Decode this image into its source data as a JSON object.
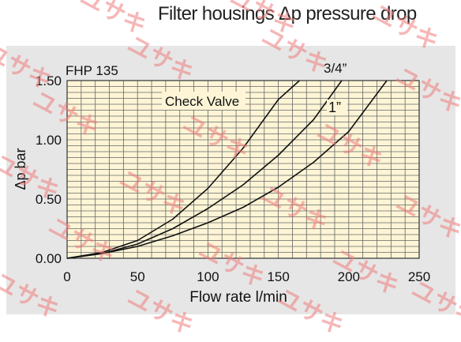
{
  "header": {
    "title": "Filter housings Δp pressure drop"
  },
  "watermark": {
    "text": "ユサキ"
  },
  "colors": {
    "plot_bg": "#fdf5d6",
    "panel_bg": "#e6e6e6",
    "grid": "#666666",
    "curve": "#111111",
    "watermark": "#f07d7d"
  },
  "chart_data": {
    "type": "line",
    "model_label": "FHP 135",
    "xlabel": "Flow rate l/min",
    "ylabel": "Δp bar",
    "xlim": [
      0,
      250
    ],
    "ylim": [
      0,
      1.5
    ],
    "x_ticks": [
      0,
      50,
      100,
      150,
      200,
      250
    ],
    "y_ticks": [
      0.0,
      0.5,
      1.0,
      1.5
    ],
    "x_tick_labels": [
      "0",
      "50",
      "100",
      "150",
      "200",
      "250"
    ],
    "y_tick_labels": [
      "0.00",
      "0.50",
      "1.00",
      "1.50"
    ],
    "grid": true,
    "series": [
      {
        "name": "Check Valve",
        "x": [
          0,
          25,
          50,
          75,
          100,
          125,
          150,
          165
        ],
        "y": [
          0,
          0.05,
          0.15,
          0.33,
          0.59,
          0.93,
          1.34,
          1.5
        ]
      },
      {
        "name": "3/4”",
        "x": [
          0,
          25,
          50,
          75,
          100,
          125,
          150,
          175,
          195
        ],
        "y": [
          0,
          0.04,
          0.12,
          0.25,
          0.42,
          0.62,
          0.87,
          1.17,
          1.5
        ]
      },
      {
        "name": "1”",
        "x": [
          0,
          25,
          50,
          75,
          100,
          125,
          150,
          175,
          200,
          227
        ],
        "y": [
          0,
          0.04,
          0.1,
          0.19,
          0.3,
          0.43,
          0.6,
          0.81,
          1.07,
          1.5
        ]
      }
    ]
  }
}
